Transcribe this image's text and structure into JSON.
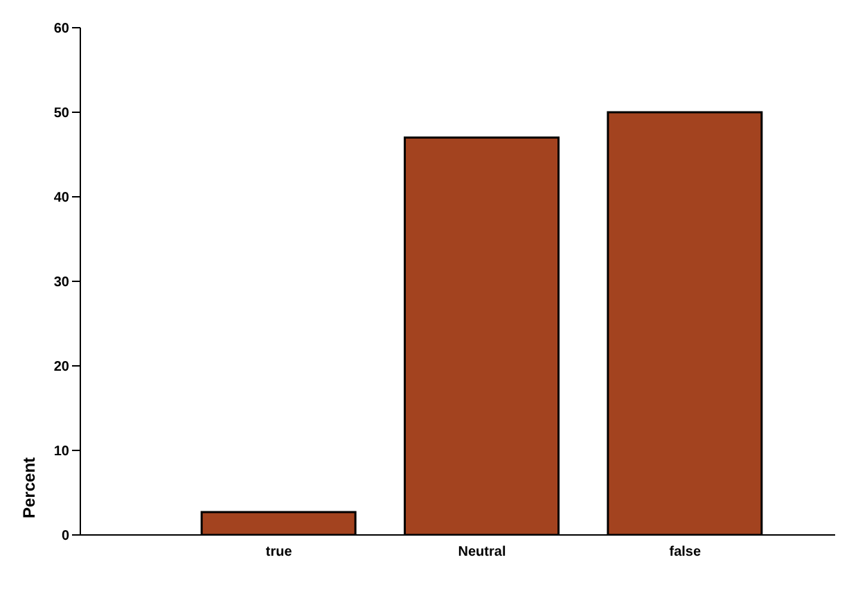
{
  "chart_data": {
    "type": "bar",
    "ylabel": "Percent",
    "categories": [
      "true",
      "Neutral",
      "false"
    ],
    "values": [
      2.7,
      47,
      50
    ],
    "color": "#a3431f",
    "ylim": [
      0,
      60
    ],
    "yticks": [
      0,
      10,
      20,
      30,
      40,
      50,
      60
    ],
    "grid": false,
    "legend": false
  }
}
